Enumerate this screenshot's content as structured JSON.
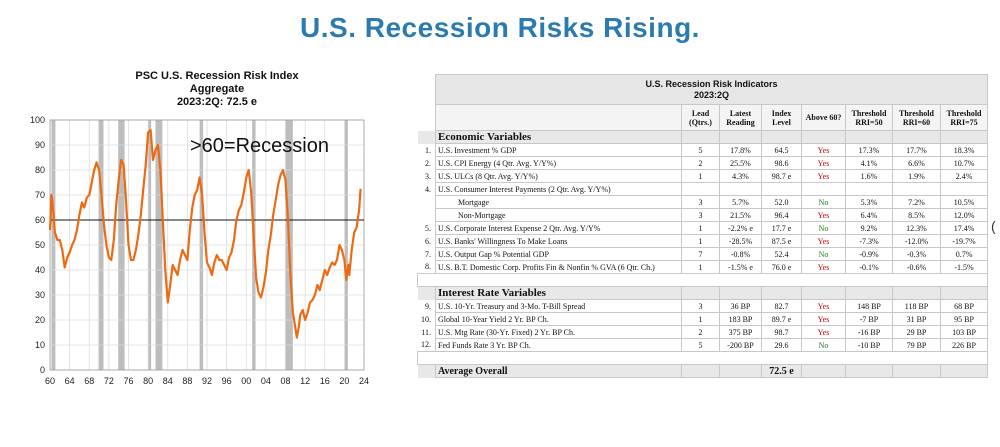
{
  "page": {
    "title": "U.S. Recession Risks Rising.",
    "edge_mark": "("
  },
  "chart_data": {
    "type": "line",
    "title": "PSC U.S. Recession Risk Index",
    "subtitle_1": "Aggregate",
    "subtitle_2": "2023:2Q: 72.5 e",
    "annotation": ">60=Recession",
    "threshold": 60,
    "xlim": [
      1960,
      2024
    ],
    "ylim": [
      0,
      100
    ],
    "x_ticks": [
      "60",
      "64",
      "68",
      "72",
      "76",
      "80",
      "84",
      "88",
      "92",
      "96",
      "00",
      "04",
      "08",
      "12",
      "16",
      "20",
      "24"
    ],
    "y_ticks": [
      "0",
      "10",
      "20",
      "30",
      "40",
      "50",
      "60",
      "70",
      "80",
      "90",
      "100"
    ],
    "recessions": [
      [
        1960.3,
        1961.1
      ],
      [
        1969.9,
        1970.9
      ],
      [
        1973.9,
        1975.2
      ],
      [
        1980.0,
        1980.5
      ],
      [
        1981.5,
        1982.9
      ],
      [
        1990.5,
        1991.2
      ],
      [
        2001.2,
        2001.9
      ],
      [
        2007.9,
        2009.5
      ],
      [
        2020.1,
        2020.4
      ]
    ],
    "series": [
      {
        "color": "#ee6a12",
        "points": [
          [
            1960.0,
            56
          ],
          [
            1960.3,
            70
          ],
          [
            1960.7,
            63
          ],
          [
            1961.0,
            55
          ],
          [
            1961.5,
            52
          ],
          [
            1962.0,
            52
          ],
          [
            1962.5,
            48
          ],
          [
            1963.0,
            41
          ],
          [
            1963.5,
            45
          ],
          [
            1964.0,
            47
          ],
          [
            1964.5,
            50
          ],
          [
            1965.0,
            52
          ],
          [
            1965.5,
            56
          ],
          [
            1966.0,
            62
          ],
          [
            1966.5,
            67
          ],
          [
            1967.0,
            65
          ],
          [
            1967.5,
            69
          ],
          [
            1968.0,
            70
          ],
          [
            1968.5,
            75
          ],
          [
            1969.0,
            80
          ],
          [
            1969.5,
            83
          ],
          [
            1970.0,
            80
          ],
          [
            1970.5,
            70
          ],
          [
            1971.0,
            58
          ],
          [
            1971.5,
            50
          ],
          [
            1972.0,
            45
          ],
          [
            1972.5,
            44
          ],
          [
            1973.0,
            52
          ],
          [
            1973.5,
            66
          ],
          [
            1974.0,
            76
          ],
          [
            1974.5,
            84
          ],
          [
            1975.0,
            82
          ],
          [
            1975.5,
            68
          ],
          [
            1976.0,
            50
          ],
          [
            1976.5,
            44
          ],
          [
            1977.0,
            44
          ],
          [
            1977.5,
            48
          ],
          [
            1978.0,
            54
          ],
          [
            1978.5,
            62
          ],
          [
            1979.0,
            72
          ],
          [
            1979.5,
            82
          ],
          [
            1980.0,
            95
          ],
          [
            1980.5,
            96
          ],
          [
            1981.0,
            84
          ],
          [
            1981.5,
            88
          ],
          [
            1982.0,
            90
          ],
          [
            1982.5,
            80
          ],
          [
            1983.0,
            60
          ],
          [
            1983.5,
            40
          ],
          [
            1984.0,
            27
          ],
          [
            1984.5,
            34
          ],
          [
            1985.0,
            42
          ],
          [
            1985.5,
            40
          ],
          [
            1986.0,
            38
          ],
          [
            1986.5,
            44
          ],
          [
            1987.0,
            48
          ],
          [
            1987.5,
            46
          ],
          [
            1988.0,
            44
          ],
          [
            1988.5,
            56
          ],
          [
            1989.0,
            65
          ],
          [
            1989.5,
            70
          ],
          [
            1990.0,
            72
          ],
          [
            1990.5,
            77
          ],
          [
            1991.0,
            70
          ],
          [
            1991.5,
            55
          ],
          [
            1992.0,
            43
          ],
          [
            1992.5,
            41
          ],
          [
            1993.0,
            38
          ],
          [
            1993.5,
            43
          ],
          [
            1994.0,
            46
          ],
          [
            1994.5,
            44
          ],
          [
            1995.0,
            44
          ],
          [
            1995.5,
            42
          ],
          [
            1996.0,
            40
          ],
          [
            1996.5,
            45
          ],
          [
            1997.0,
            47
          ],
          [
            1997.5,
            52
          ],
          [
            1998.0,
            60
          ],
          [
            1998.5,
            64
          ],
          [
            1999.0,
            66
          ],
          [
            1999.5,
            71
          ],
          [
            2000.0,
            77
          ],
          [
            2000.5,
            80
          ],
          [
            2001.0,
            71
          ],
          [
            2001.5,
            54
          ],
          [
            2002.0,
            37
          ],
          [
            2002.5,
            31
          ],
          [
            2003.0,
            29
          ],
          [
            2003.5,
            33
          ],
          [
            2004.0,
            39
          ],
          [
            2004.5,
            48
          ],
          [
            2005.0,
            54
          ],
          [
            2005.5,
            62
          ],
          [
            2006.0,
            68
          ],
          [
            2006.5,
            74
          ],
          [
            2007.0,
            78
          ],
          [
            2007.5,
            80
          ],
          [
            2008.0,
            76
          ],
          [
            2008.5,
            60
          ],
          [
            2009.0,
            38
          ],
          [
            2009.5,
            23
          ],
          [
            2010.0,
            17
          ],
          [
            2010.3,
            13
          ],
          [
            2010.7,
            17
          ],
          [
            2011.0,
            22
          ],
          [
            2011.5,
            24
          ],
          [
            2012.0,
            20
          ],
          [
            2012.5,
            23
          ],
          [
            2013.0,
            27
          ],
          [
            2013.5,
            28
          ],
          [
            2014.0,
            30
          ],
          [
            2014.5,
            34
          ],
          [
            2015.0,
            32
          ],
          [
            2015.5,
            36
          ],
          [
            2016.0,
            40
          ],
          [
            2016.5,
            38
          ],
          [
            2017.0,
            41
          ],
          [
            2017.5,
            43
          ],
          [
            2018.0,
            42
          ],
          [
            2018.5,
            44
          ],
          [
            2019.0,
            50
          ],
          [
            2019.5,
            48
          ],
          [
            2020.0,
            44
          ],
          [
            2020.4,
            36
          ],
          [
            2020.8,
            42
          ],
          [
            2021.0,
            38
          ],
          [
            2021.5,
            48
          ],
          [
            2022.0,
            55
          ],
          [
            2022.5,
            57
          ],
          [
            2023.0,
            64
          ],
          [
            2023.3,
            72.5
          ]
        ]
      }
    ]
  },
  "table": {
    "title": "U.S. Recession Risk Indicators",
    "subtitle": "2023:2Q",
    "columns": [
      "Lead (Qtrs.)",
      "Latest Reading",
      "Index Level",
      "Above 60?",
      "Threshold RRI=50",
      "Threshold RRI=60",
      "Threshold RRI=75"
    ],
    "sections": [
      {
        "name": "Economic Variables",
        "rows": [
          {
            "num": "1.",
            "label": "U.S. Investment % GDP",
            "lead": "5",
            "latest": "17.8%",
            "index": "64.5",
            "above": "Yes",
            "t50": "17.3%",
            "t60": "17.7%",
            "t75": "18.3%"
          },
          {
            "num": "2.",
            "label": "U.S. CPI Energy (4 Qtr. Avg. Y/Y%)",
            "lead": "2",
            "latest": "25.5%",
            "index": "98.6",
            "above": "Yes",
            "t50": "4.1%",
            "t60": "6.6%",
            "t75": "10.7%"
          },
          {
            "num": "3.",
            "label": "U.S. ULCs (8 Qtr. Avg. Y/Y%)",
            "lead": "1",
            "latest": "4.3%",
            "index": "98.7 e",
            "above": "Yes",
            "t50": "1.6%",
            "t60": "1.9%",
            "t75": "2.4%"
          },
          {
            "num": "4.",
            "label": "U.S. Consumer Interest Payments (2 Qtr. Avg. Y/Y%)",
            "lead": "",
            "latest": "",
            "index": "",
            "above": "",
            "t50": "",
            "t60": "",
            "t75": ""
          },
          {
            "num": "",
            "label": "Mortgage",
            "sub": true,
            "lead": "3",
            "latest": "5.7%",
            "index": "52.0",
            "above": "No",
            "t50": "5.3%",
            "t60": "7.2%",
            "t75": "10.5%"
          },
          {
            "num": "",
            "label": "Non-Mortgage",
            "sub": true,
            "lead": "3",
            "latest": "21.5%",
            "index": "96.4",
            "above": "Yes",
            "t50": "6.4%",
            "t60": "8.5%",
            "t75": "12.0%"
          },
          {
            "num": "5.",
            "label": "U.S. Corporate Interest Expense 2 Qtr. Avg. Y/Y%",
            "lead": "1",
            "latest": "-2.2% e",
            "index": "17.7 e",
            "above": "No",
            "t50": "9.2%",
            "t60": "12.3%",
            "t75": "17.4%"
          },
          {
            "num": "6.",
            "label": "U.S. Banks' Willingness To Make Loans",
            "lead": "1",
            "latest": "-28.5%",
            "index": "87.5 e",
            "above": "Yes",
            "t50": "-7.3%",
            "t60": "-12.0%",
            "t75": "-19.7%"
          },
          {
            "num": "7.",
            "label": "U.S. Output Gap % Potential GDP",
            "lead": "7",
            "latest": "-0.8%",
            "index": "52.4",
            "above": "No",
            "t50": "-0.9%",
            "t60": "-0.3%",
            "t75": "0.7%"
          },
          {
            "num": "8.",
            "label": "U.S. B.T. Domestic Corp. Profits Fin & Nonfin % GVA (6 Qtr. Ch.)",
            "lead": "1",
            "latest": "-1.5% e",
            "index": "76.0 e",
            "above": "Yes",
            "t50": "-0.1%",
            "t60": "-0.6%",
            "t75": "-1.5%"
          }
        ]
      },
      {
        "name": "Interest Rate Variables",
        "rows": [
          {
            "num": "9.",
            "label": "U.S. 10-Yr. Treasury and 3-Mo. T-Bill Spread",
            "lead": "3",
            "latest": "36 BP",
            "index": "82.7",
            "above": "Yes",
            "t50": "148 BP",
            "t60": "118 BP",
            "t75": "68 BP"
          },
          {
            "num": "10.",
            "label": "Global 10-Year Yield 2 Yr. BP Ch.",
            "lead": "1",
            "latest": "183 BP",
            "index": "89.7 e",
            "above": "Yes",
            "t50": "-7 BP",
            "t60": "31 BP",
            "t75": "95 BP"
          },
          {
            "num": "11.",
            "label": "U.S. Mtg Rate (30-Yr. Fixed) 2 Yr. BP Ch.",
            "lead": "2",
            "latest": "375 BP",
            "index": "98.7",
            "above": "Yes",
            "t50": "-16 BP",
            "t60": "29 BP",
            "t75": "103 BP"
          },
          {
            "num": "12.",
            "label": "Fed Funds Rate 3 Yr. BP Ch.",
            "lead": "5",
            "latest": "-200 BP",
            "index": "29.6",
            "above": "No",
            "t50": "-10 BP",
            "t60": "79 BP",
            "t75": "226 BP"
          }
        ]
      }
    ],
    "average": {
      "label": "Average Overall",
      "value": "72.5 e"
    }
  }
}
